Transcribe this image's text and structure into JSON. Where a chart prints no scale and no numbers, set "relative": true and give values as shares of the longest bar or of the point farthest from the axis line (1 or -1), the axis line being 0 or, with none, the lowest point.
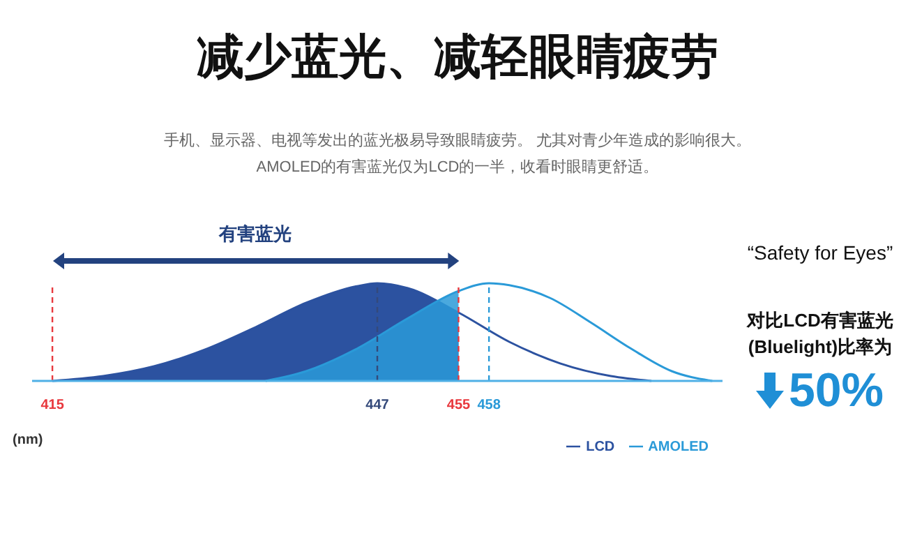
{
  "chart_data": {
    "type": "area",
    "relative": true,
    "title": "减少蓝光、减轻眼睛疲劳",
    "subtitle": "手机、显示器、电视等发出的蓝光极易导致眼睛疲劳。 尤其对青少年造成的影响很大。\nAMOLED的有害蓝光仅为LCD的一半，收看时眼睛更舒适。",
    "xlabel": "(nm)",
    "xlim": [
      413,
      481
    ],
    "xticks": [
      415,
      447,
      455,
      458
    ],
    "series": [
      {
        "name": "LCD",
        "color": "#2c52a0",
        "x": [
          415,
          420,
          425,
          430,
          435,
          440,
          445,
          447,
          450,
          455,
          460,
          465,
          470,
          474
        ],
        "values": [
          0,
          0.05,
          0.15,
          0.32,
          0.55,
          0.8,
          0.97,
          1,
          0.95,
          0.7,
          0.4,
          0.18,
          0.05,
          0
        ]
      },
      {
        "name": "AMOLED",
        "color": "#2a9ad8",
        "x": [
          436,
          440,
          445,
          450,
          455,
          458,
          460,
          464,
          468,
          472,
          476,
          480
        ],
        "values": [
          0,
          0.1,
          0.33,
          0.64,
          0.92,
          1,
          0.98,
          0.85,
          0.6,
          0.33,
          0.1,
          0
        ]
      }
    ],
    "ref_lines": [
      {
        "axis": "x",
        "value": 415,
        "color": "#e8383d",
        "line_style": "dashed"
      },
      {
        "axis": "x",
        "value": 447,
        "color": "#34497a",
        "line_style": "dashed"
      },
      {
        "axis": "x",
        "value": 455,
        "color": "#e8383d",
        "line_style": "dashed"
      },
      {
        "axis": "x",
        "value": 458,
        "color": "#2a9ad8",
        "line_style": "dashed"
      }
    ],
    "annotations": [
      "有害蓝光",
      "对比LCD有害蓝光",
      "(Bluelight)比率为",
      "50%",
      "“Safety for Eyes”"
    ],
    "legend": "bottom right",
    "marker": "none",
    "line_style": "solid"
  }
}
